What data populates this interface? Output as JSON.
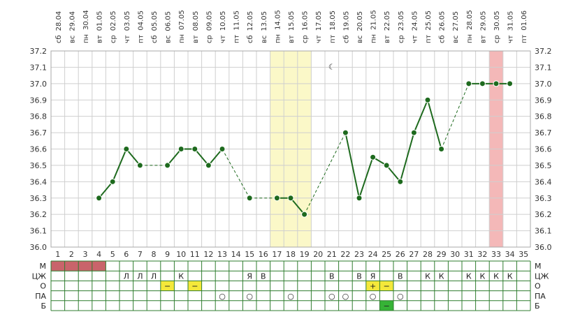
{
  "chart_data": {
    "type": "line",
    "title": "",
    "xlabel": "",
    "ylabel": "",
    "ylim": [
      36.0,
      37.2
    ],
    "y_ticks": [
      "36.0",
      "36.1",
      "36.2",
      "36.3",
      "36.4",
      "36.5",
      "36.6",
      "36.7",
      "36.8",
      "36.9",
      "37.0",
      "37.1",
      "37.2"
    ],
    "days": [
      1,
      2,
      3,
      4,
      5,
      6,
      7,
      8,
      9,
      10,
      11,
      12,
      13,
      14,
      15,
      16,
      17,
      18,
      19,
      20,
      21,
      22,
      23,
      24,
      25,
      26,
      27,
      28,
      29,
      30,
      31,
      32,
      33,
      34,
      35
    ],
    "weekdays": [
      "сб",
      "вс",
      "пн",
      "вт",
      "ср",
      "чт",
      "пт",
      "сб",
      "вс",
      "пн",
      "вт",
      "ср",
      "чт",
      "пт",
      "сб",
      "вс",
      "пн",
      "вт",
      "ср",
      "чт",
      "пт",
      "сб",
      "вс",
      "пн",
      "вт",
      "ср",
      "чт",
      "пт",
      "сб",
      "вс",
      "пн",
      "вт",
      "ср",
      "чт",
      "пт"
    ],
    "dates": [
      "28.04",
      "29.04",
      "30.04",
      "01.05",
      "02.05",
      "03.05",
      "04.05",
      "05.05",
      "06.05",
      "07.05",
      "08.05",
      "09.05",
      "10.05",
      "11.05",
      "12.05",
      "13.05",
      "14.05",
      "15.05",
      "16.05",
      "17.05",
      "18.05",
      "19.05",
      "20.05",
      "21.05",
      "22.05",
      "23.05",
      "24.05",
      "25.05",
      "26.05",
      "27.05",
      "28.05",
      "29.05",
      "30.05",
      "31.05",
      "01.06"
    ],
    "series": [
      {
        "color": "#1e6a1e",
        "points": [
          {
            "day": 4,
            "value": 36.3
          },
          {
            "day": 5,
            "value": 36.4
          },
          {
            "day": 6,
            "value": 36.6
          },
          {
            "day": 7,
            "value": 36.5
          },
          {
            "day": 9,
            "value": 36.5
          },
          {
            "day": 10,
            "value": 36.6
          },
          {
            "day": 11,
            "value": 36.6
          },
          {
            "day": 12,
            "value": 36.5
          },
          {
            "day": 13,
            "value": 36.6
          },
          {
            "day": 15,
            "value": 36.3
          },
          {
            "day": 17,
            "value": 36.3
          },
          {
            "day": 18,
            "value": 36.3
          },
          {
            "day": 19,
            "value": 36.2
          },
          {
            "day": 22,
            "value": 36.7
          },
          {
            "day": 23,
            "value": 36.3
          },
          {
            "day": 24,
            "value": 36.55
          },
          {
            "day": 25,
            "value": 36.5
          },
          {
            "day": 26,
            "value": 36.4
          },
          {
            "day": 27,
            "value": 36.7
          },
          {
            "day": 28,
            "value": 36.9
          },
          {
            "day": 29,
            "value": 36.6
          },
          {
            "day": 31,
            "value": 37.0
          },
          {
            "day": 32,
            "value": 37.0
          },
          {
            "day": 33,
            "value": 37.0
          },
          {
            "day": 34,
            "value": 37.0
          }
        ]
      }
    ],
    "highlight_bands": [
      {
        "from_day": 17,
        "to_day": 19,
        "color": "#fbf8c8"
      },
      {
        "from_day": 33,
        "to_day": 33,
        "color": "#f4b8b8"
      }
    ],
    "moon_icon_day": 21,
    "moon_glyph": "☾",
    "symptom_rows": [
      {
        "label": "М",
        "fills": [
          {
            "from_day": 1,
            "to_day": 4,
            "color": "#c9646b"
          }
        ],
        "marks": []
      },
      {
        "label": "ЦЖ",
        "fills": [],
        "marks": [
          {
            "day": 6,
            "text": "Л"
          },
          {
            "day": 7,
            "text": "Л"
          },
          {
            "day": 8,
            "text": "Л"
          },
          {
            "day": 10,
            "text": "К"
          },
          {
            "day": 15,
            "text": "Я"
          },
          {
            "day": 16,
            "text": "В"
          },
          {
            "day": 21,
            "text": "В"
          },
          {
            "day": 23,
            "text": "В"
          },
          {
            "day": 24,
            "text": "Я"
          },
          {
            "day": 26,
            "text": "В"
          },
          {
            "day": 28,
            "text": "К"
          },
          {
            "day": 29,
            "text": "К"
          },
          {
            "day": 31,
            "text": "К"
          },
          {
            "day": 32,
            "text": "К"
          },
          {
            "day": 33,
            "text": "К"
          },
          {
            "day": 34,
            "text": "К"
          }
        ]
      },
      {
        "label": "О",
        "fills": [
          {
            "from_day": 9,
            "to_day": 9,
            "color": "#f4e83a"
          },
          {
            "from_day": 11,
            "to_day": 11,
            "color": "#f4e83a"
          },
          {
            "from_day": 24,
            "to_day": 24,
            "color": "#f4e83a"
          },
          {
            "from_day": 25,
            "to_day": 25,
            "color": "#f4e83a"
          }
        ],
        "marks": [
          {
            "day": 9,
            "text": "−",
            "color": "#c0392b"
          },
          {
            "day": 11,
            "text": "−",
            "color": "#c0392b"
          },
          {
            "day": 24,
            "text": "+",
            "color": "#c0392b"
          },
          {
            "day": 25,
            "text": "−",
            "color": "#c0392b"
          }
        ]
      },
      {
        "label": "ПА",
        "fills": [],
        "marks": [
          {
            "day": 13,
            "text": "○",
            "color": "#d94a4a"
          },
          {
            "day": 15,
            "text": "○",
            "color": "#d94a4a"
          },
          {
            "day": 18,
            "text": "○",
            "color": "#d94a4a"
          },
          {
            "day": 21,
            "text": "○",
            "color": "#d94a4a"
          },
          {
            "day": 22,
            "text": "○",
            "color": "#d94a4a"
          },
          {
            "day": 24,
            "text": "○",
            "color": "#d94a4a"
          },
          {
            "day": 26,
            "text": "○",
            "color": "#d94a4a"
          }
        ]
      },
      {
        "label": "Б",
        "fills": [
          {
            "from_day": 25,
            "to_day": 25,
            "color": "#36b336"
          }
        ],
        "marks": [
          {
            "day": 25,
            "text": "−",
            "color": "#ffffff"
          }
        ]
      }
    ]
  }
}
